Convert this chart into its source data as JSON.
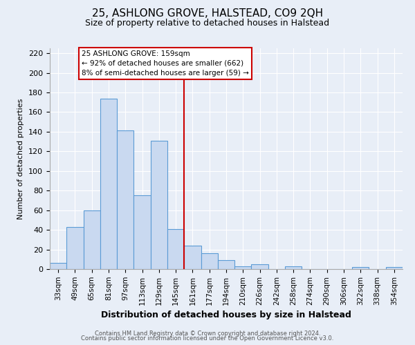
{
  "title": "25, ASHLONG GROVE, HALSTEAD, CO9 2QH",
  "subtitle": "Size of property relative to detached houses in Halstead",
  "xlabel": "Distribution of detached houses by size in Halstead",
  "ylabel": "Number of detached properties",
  "bar_labels": [
    "33sqm",
    "49sqm",
    "65sqm",
    "81sqm",
    "97sqm",
    "113sqm",
    "129sqm",
    "145sqm",
    "161sqm",
    "177sqm",
    "194sqm",
    "210sqm",
    "226sqm",
    "242sqm",
    "258sqm",
    "274sqm",
    "290sqm",
    "306sqm",
    "322sqm",
    "338sqm",
    "354sqm"
  ],
  "bar_values": [
    6,
    43,
    60,
    174,
    141,
    75,
    131,
    41,
    24,
    16,
    9,
    3,
    5,
    0,
    3,
    0,
    0,
    0,
    2,
    0,
    2
  ],
  "bar_color": "#c9d9f0",
  "bar_edge_color": "#5b9bd5",
  "vline_x": 8,
  "vline_color": "#cc0000",
  "ylim": [
    0,
    225
  ],
  "yticks": [
    0,
    20,
    40,
    60,
    80,
    100,
    120,
    140,
    160,
    180,
    200,
    220
  ],
  "annotation_title": "25 ASHLONG GROVE: 159sqm",
  "annotation_line1": "← 92% of detached houses are smaller (662)",
  "annotation_line2": "8% of semi-detached houses are larger (59) →",
  "footer_line1": "Contains HM Land Registry data © Crown copyright and database right 2024.",
  "footer_line2": "Contains public sector information licensed under the Open Government Licence v3.0.",
  "bg_color": "#e8eef7",
  "plot_bg_color": "#e8eef7",
  "grid_color": "#ffffff"
}
